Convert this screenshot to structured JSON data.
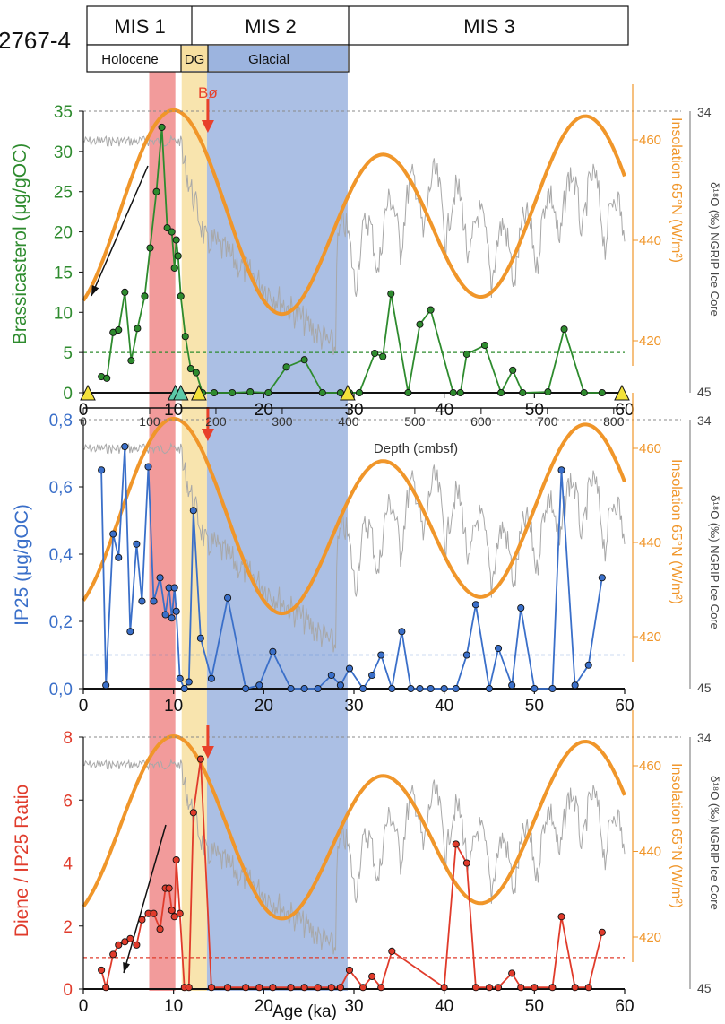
{
  "core_label": "2767-4",
  "stratigraphy": {
    "mis": [
      "MIS 1",
      "MIS 2",
      "MIS 3"
    ],
    "intervals": [
      "Holocene",
      "DG",
      "Glacial"
    ]
  },
  "annotations": {
    "event": "Bø"
  },
  "colors": {
    "holocene_band": "#f08a8a",
    "dg_band": "#f7dfa0",
    "glacial_band": "#9cb4df",
    "insolation": "#f0962a",
    "ngrip": "#a8a8a8",
    "brassicasterol": "#2e8b2e",
    "ip25": "#3a6fc9",
    "diene": "#e03b2b",
    "arrow": "#e8402a"
  },
  "depth_axis": {
    "label": "Depth (cmbsf)",
    "ticks": [
      "0",
      "100",
      "200",
      "300",
      "400",
      "500",
      "600",
      "700",
      "800"
    ]
  },
  "chart_data": [
    {
      "type": "line",
      "panel": "top",
      "ylabel": "Brassicasterol (μg/gOC)",
      "y2label": "Insolation 65°N (W/m²)",
      "y3label": "δ¹⁸O (‰) NGRIP Ice Core",
      "xlim": [
        0,
        60
      ],
      "ylim": [
        0,
        35
      ],
      "y_ticks": [
        "0",
        "5",
        "10",
        "15",
        "20",
        "25",
        "30",
        "35"
      ],
      "x_ticks": [
        "0",
        "10",
        "20",
        "30",
        "40",
        "50",
        "60"
      ],
      "insolation_ticks": [
        "420",
        "440",
        "460"
      ],
      "d18o_ticks": [
        "34",
        "45"
      ],
      "threshold": 5,
      "tie_point_ages": [
        0.5,
        10.2,
        10.8,
        12.8,
        29.3,
        59.7
      ],
      "series": [
        {
          "name": "Brassicasterol",
          "x": [
            2,
            2.6,
            3.3,
            3.9,
            4.6,
            5.3,
            6.0,
            6.8,
            7.4,
            8.1,
            8.7,
            9.3,
            9.8,
            10.1,
            10.3,
            10.5,
            10.8,
            11.3,
            11.9,
            12.5,
            13.2,
            14.5,
            16.5,
            18.5,
            20.5,
            22.5,
            24.5,
            26.5,
            28.5,
            29.5,
            30.6,
            32.3,
            33.2,
            34.1,
            36.0,
            37.3,
            38.5,
            41.0,
            41.8,
            42.5,
            44.5,
            46.3,
            47.6,
            48.7,
            51.5,
            53.3,
            55.5,
            57.5
          ],
          "values": [
            2,
            1.8,
            7.5,
            7.8,
            12.5,
            4,
            8,
            12,
            18,
            25,
            33,
            20.5,
            20,
            15.5,
            19,
            17,
            12,
            7,
            3,
            2.5,
            0,
            0,
            0,
            0.1,
            0,
            3.2,
            4.1,
            0,
            0,
            0,
            0,
            4.9,
            4.5,
            12.3,
            0,
            8.5,
            10.3,
            0,
            0,
            4.8,
            5.9,
            0,
            2.8,
            0,
            0.1,
            7.9,
            0,
            0
          ]
        }
      ]
    },
    {
      "type": "line",
      "panel": "middle",
      "ylabel": "IP25 (μg/gOC)",
      "y2label": "Insolation 65°N (W/m²)",
      "y3label": "δ¹⁸O (‰) NGRIP Ice Core",
      "xlim": [
        0,
        60
      ],
      "ylim": [
        0,
        0.8
      ],
      "y_ticks": [
        "0,0",
        "0,2",
        "0,4",
        "0,6",
        "0,8"
      ],
      "x_ticks": [
        "0",
        "10",
        "20",
        "30",
        "40",
        "50",
        "60"
      ],
      "insolation_ticks": [
        "420",
        "440",
        "460"
      ],
      "d18o_ticks": [
        "34",
        "45"
      ],
      "threshold": 0.1,
      "series": [
        {
          "name": "IP25",
          "x": [
            2,
            2.5,
            3.3,
            3.9,
            4.6,
            5.2,
            5.9,
            6.5,
            7.2,
            7.8,
            8.5,
            9.1,
            9.5,
            9.8,
            10.1,
            10.3,
            10.7,
            11.2,
            11.7,
            12.2,
            13.0,
            14.2,
            16.0,
            18.0,
            19.5,
            21.0,
            23.0,
            24.5,
            26.0,
            27.5,
            28.5,
            29.5,
            31.0,
            32.0,
            33.0,
            34.2,
            35.3,
            36.3,
            37.3,
            38.5,
            40.0,
            41.3,
            42.5,
            43.5,
            45.0,
            46.0,
            47.5,
            48.5,
            50.0,
            52.0,
            53.0,
            54.5,
            56.0,
            57.5
          ],
          "values": [
            0.65,
            0.01,
            0.46,
            0.39,
            0.72,
            0.17,
            0.43,
            0.26,
            0.66,
            0.26,
            0.33,
            0.22,
            0.3,
            0.21,
            0.3,
            0.23,
            0.03,
            0,
            0.02,
            0.53,
            0.15,
            0.03,
            0.27,
            0,
            0.01,
            0.11,
            0,
            0,
            0,
            0.04,
            0.01,
            0.06,
            0,
            0.04,
            0.1,
            0,
            0.17,
            0,
            0,
            0,
            0,
            0,
            0.1,
            0.25,
            0,
            0.12,
            0.01,
            0.24,
            0,
            0,
            0.65,
            0.01,
            0.07,
            0.33
          ]
        }
      ]
    },
    {
      "type": "line",
      "panel": "bottom",
      "ylabel": "Diene / IP25 Ratio",
      "xlabel": "Age (ka)",
      "y2label": "Insolation 65°N (W/m²)",
      "y3label": "δ¹⁸O (‰) NGRIP Ice Core",
      "xlim": [
        0,
        60
      ],
      "ylim": [
        0,
        8
      ],
      "y_ticks": [
        "0",
        "2",
        "4",
        "6",
        "8"
      ],
      "x_ticks": [
        "0",
        "10",
        "20",
        "30",
        "40",
        "50",
        "60"
      ],
      "insolation_ticks": [
        "420",
        "440",
        "460"
      ],
      "d18o_ticks": [
        "34",
        "45"
      ],
      "threshold": 1,
      "series": [
        {
          "name": "Diene / IP25",
          "x": [
            2,
            2.5,
            3.3,
            3.9,
            4.6,
            5.2,
            5.9,
            6.5,
            7.2,
            7.8,
            8.5,
            9.1,
            9.5,
            9.8,
            10.1,
            10.3,
            10.7,
            11.2,
            11.7,
            12.2,
            13.0,
            14.2,
            16.0,
            18.0,
            19.5,
            21.0,
            23.0,
            24.5,
            26.0,
            27.5,
            28.5,
            29.5,
            31.0,
            32.0,
            33.0,
            34.2,
            40.0,
            41.3,
            42.5,
            43.5,
            45.0,
            46.0,
            47.5,
            48.5,
            50.0,
            52.0,
            53.0,
            54.5,
            56.0,
            57.5
          ],
          "values": [
            0.6,
            0.05,
            1.1,
            1.4,
            1.5,
            1.6,
            1.4,
            2.2,
            2.4,
            2.4,
            1.9,
            3.2,
            3.2,
            2.5,
            2.3,
            4.1,
            2.4,
            0.05,
            0.05,
            5.6,
            7.3,
            0.05,
            0.05,
            0.05,
            0.05,
            0.05,
            0.05,
            0.05,
            0.05,
            0.05,
            0.05,
            0.6,
            0.05,
            0.4,
            0.05,
            1.2,
            0.05,
            4.6,
            4.0,
            0.05,
            0.05,
            0.05,
            0.5,
            0.05,
            0.05,
            0.05,
            2.3,
            0.05,
            0.05,
            1.8
          ]
        }
      ]
    }
  ]
}
